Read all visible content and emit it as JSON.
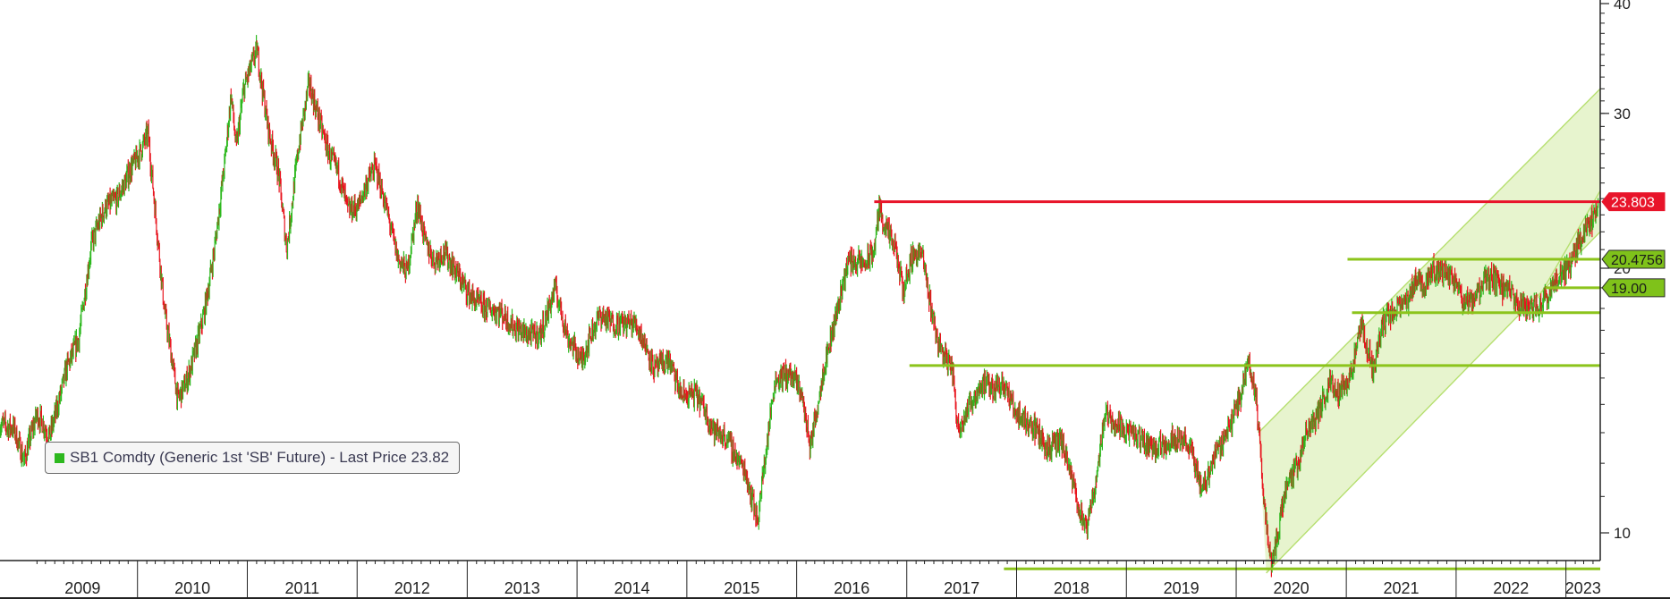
{
  "chart_data": {
    "type": "line",
    "title": "",
    "xlabel": "",
    "ylabel": "",
    "x_axis": {
      "type": "date",
      "range": [
        "2008-10-01",
        "2023-04-25"
      ],
      "tick_labels": [
        "2009",
        "2010",
        "2011",
        "2012",
        "2013",
        "2014",
        "2015",
        "2016",
        "2017",
        "2018",
        "2019",
        "2020",
        "2021",
        "2022",
        "2023"
      ]
    },
    "y_axis": {
      "scale": "log",
      "position": "right",
      "visible_range": [
        9.3,
        40
      ],
      "tick_labels": [
        10,
        20,
        30,
        40
      ]
    },
    "grid": false,
    "legend": {
      "placement": "bottom-left",
      "label": "SB1 Comdty (Generic 1st 'SB' Future) - Last Price 23.82",
      "swatch_color": "#2db81e"
    },
    "candle_colors": {
      "up": "#2db81e",
      "down": "#e8141e"
    },
    "series": [
      {
        "name": "SB1 Comdty (Generic 1st 'SB' Future) - Last Price",
        "points": [
          [
            "2008-10-01",
            13.6
          ],
          [
            "2008-11-15",
            13.2
          ],
          [
            "2008-12-20",
            11.9
          ],
          [
            "2009-02-01",
            13.4
          ],
          [
            "2009-03-15",
            12.9
          ],
          [
            "2009-05-10",
            15.7
          ],
          [
            "2009-06-20",
            16.8
          ],
          [
            "2009-08-01",
            21.0
          ],
          [
            "2009-09-15",
            23.0
          ],
          [
            "2009-10-25",
            24.0
          ],
          [
            "2009-12-10",
            26.5
          ],
          [
            "2010-01-15",
            27.8
          ],
          [
            "2010-02-05",
            28.6
          ],
          [
            "2010-03-05",
            22.2
          ],
          [
            "2010-04-01",
            17.5
          ],
          [
            "2010-05-15",
            14.0
          ],
          [
            "2010-06-15",
            15.0
          ],
          [
            "2010-07-05",
            16.0
          ],
          [
            "2010-08-10",
            18.1
          ],
          [
            "2010-09-15",
            21.3
          ],
          [
            "2010-10-20",
            26.5
          ],
          [
            "2010-11-08",
            31.0
          ],
          [
            "2010-11-25",
            26.8
          ],
          [
            "2010-12-20",
            31.5
          ],
          [
            "2011-02-02",
            35.8
          ],
          [
            "2011-03-10",
            29.6
          ],
          [
            "2011-04-15",
            26.0
          ],
          [
            "2011-05-12",
            21.0
          ],
          [
            "2011-06-20",
            26.9
          ],
          [
            "2011-07-25",
            31.9
          ],
          [
            "2011-08-25",
            29.6
          ],
          [
            "2011-10-01",
            27.3
          ],
          [
            "2011-11-01",
            26.2
          ],
          [
            "2011-12-01",
            23.5
          ],
          [
            "2012-01-05",
            23.3
          ],
          [
            "2012-02-01",
            24.5
          ],
          [
            "2012-03-01",
            25.6
          ],
          [
            "2012-04-01",
            23.7
          ],
          [
            "2012-05-15",
            20.9
          ],
          [
            "2012-06-15",
            20.2
          ],
          [
            "2012-07-20",
            23.9
          ],
          [
            "2012-08-15",
            21.2
          ],
          [
            "2012-09-15",
            20.0
          ],
          [
            "2012-10-15",
            20.5
          ],
          [
            "2012-12-15",
            19.5
          ],
          [
            "2013-02-15",
            18.4
          ],
          [
            "2013-04-15",
            17.6
          ],
          [
            "2013-06-01",
            16.9
          ],
          [
            "2013-07-15",
            16.9
          ],
          [
            "2013-09-01",
            17.2
          ],
          [
            "2013-10-20",
            19.1
          ],
          [
            "2013-12-01",
            16.4
          ],
          [
            "2014-01-15",
            15.4
          ],
          [
            "2014-02-20",
            17.0
          ],
          [
            "2014-03-20",
            18.0
          ],
          [
            "2014-05-20",
            17.5
          ],
          [
            "2014-07-15",
            17.0
          ],
          [
            "2014-09-15",
            15.2
          ],
          [
            "2014-11-01",
            16.0
          ],
          [
            "2014-12-15",
            14.6
          ],
          [
            "2015-02-01",
            14.3
          ],
          [
            "2015-04-01",
            12.8
          ],
          [
            "2015-05-15",
            12.8
          ],
          [
            "2015-07-15",
            12.0
          ],
          [
            "2015-08-24",
            10.4
          ],
          [
            "2015-09-20",
            12.2
          ],
          [
            "2015-10-20",
            14.6
          ],
          [
            "2015-12-10",
            15.0
          ],
          [
            "2016-01-15",
            14.7
          ],
          [
            "2016-02-15",
            12.8
          ],
          [
            "2016-03-30",
            15.5
          ],
          [
            "2016-05-10",
            17.4
          ],
          [
            "2016-06-20",
            20.0
          ],
          [
            "2016-07-20",
            20.1
          ],
          [
            "2016-08-15",
            20.3
          ],
          [
            "2016-09-15",
            21.4
          ],
          [
            "2016-10-01",
            23.9
          ],
          [
            "2016-10-25",
            22.5
          ],
          [
            "2016-11-25",
            21.0
          ],
          [
            "2016-12-20",
            18.6
          ],
          [
            "2017-01-20",
            20.3
          ],
          [
            "2017-02-20",
            20.5
          ],
          [
            "2017-03-15",
            18.6
          ],
          [
            "2017-04-15",
            16.7
          ],
          [
            "2017-06-01",
            15.7
          ],
          [
            "2017-06-20",
            13.3
          ],
          [
            "2017-08-10",
            14.0
          ],
          [
            "2017-09-10",
            14.5
          ],
          [
            "2017-10-10",
            14.4
          ],
          [
            "2017-11-15",
            15.0
          ],
          [
            "2017-12-20",
            14.2
          ],
          [
            "2018-01-20",
            13.7
          ],
          [
            "2018-02-20",
            13.3
          ],
          [
            "2018-04-15",
            12.2
          ],
          [
            "2018-05-30",
            12.6
          ],
          [
            "2018-07-15",
            11.3
          ],
          [
            "2018-08-20",
            10.2
          ],
          [
            "2018-09-30",
            12.0
          ],
          [
            "2018-10-20",
            13.6
          ],
          [
            "2018-12-01",
            13.0
          ],
          [
            "2019-01-15",
            12.9
          ],
          [
            "2019-02-28",
            12.9
          ],
          [
            "2019-04-20",
            12.7
          ],
          [
            "2019-06-15",
            12.7
          ],
          [
            "2019-07-30",
            12.3
          ],
          [
            "2019-09-10",
            11.2
          ],
          [
            "2019-10-25",
            12.6
          ],
          [
            "2019-12-10",
            13.4
          ],
          [
            "2020-01-15",
            14.2
          ],
          [
            "2020-02-12",
            15.5
          ],
          [
            "2020-03-10",
            13.7
          ],
          [
            "2020-04-01",
            10.8
          ],
          [
            "2020-04-28",
            9.2
          ],
          [
            "2020-05-25",
            10.5
          ],
          [
            "2020-06-20",
            11.8
          ],
          [
            "2020-07-20",
            12.0
          ],
          [
            "2020-08-20",
            12.9
          ],
          [
            "2020-10-01",
            13.4
          ],
          [
            "2020-11-10",
            14.7
          ],
          [
            "2020-12-10",
            14.5
          ],
          [
            "2021-01-20",
            15.6
          ],
          [
            "2021-02-20",
            17.5
          ],
          [
            "2021-04-01",
            15.2
          ],
          [
            "2021-05-01",
            17.0
          ],
          [
            "2021-06-01",
            17.5
          ],
          [
            "2021-07-01",
            17.9
          ],
          [
            "2021-07-25",
            18.4
          ],
          [
            "2021-08-20",
            20.0
          ],
          [
            "2021-09-15",
            19.5
          ],
          [
            "2021-10-15",
            20.3
          ],
          [
            "2021-11-15",
            19.6
          ],
          [
            "2021-12-15",
            19.3
          ],
          [
            "2022-01-20",
            18.2
          ],
          [
            "2022-02-20",
            18.1
          ],
          [
            "2022-04-01",
            19.6
          ],
          [
            "2022-05-01",
            19.9
          ],
          [
            "2022-06-01",
            19.2
          ],
          [
            "2022-07-01",
            18.6
          ],
          [
            "2022-08-01",
            17.8
          ],
          [
            "2022-09-05",
            17.7
          ],
          [
            "2022-09-25",
            17.9
          ],
          [
            "2022-10-25",
            18.7
          ],
          [
            "2022-11-20",
            19.5
          ],
          [
            "2022-12-20",
            20.1
          ],
          [
            "2023-01-20",
            20.4
          ],
          [
            "2023-02-15",
            21.3
          ],
          [
            "2023-03-15",
            22.0
          ],
          [
            "2023-04-05",
            22.4
          ],
          [
            "2023-04-18",
            23.82
          ]
        ]
      }
    ],
    "horizontal_lines": [
      {
        "value": 23.803,
        "color": "#e8142a",
        "from": "2016-09-15",
        "to": "2023-04-25",
        "label": "23.803"
      },
      {
        "value": 20.4756,
        "color": "#8cc41c",
        "from": "2021-01-05",
        "to": "2023-04-25",
        "label": "20.4756"
      },
      {
        "value": 19.0,
        "color": "#8cc41c",
        "from": "2022-10-25",
        "to": "2023-04-25",
        "label": "19.00"
      },
      {
        "value": 17.8,
        "color": "#8cc41c",
        "from": "2021-01-20",
        "to": "2023-04-25"
      },
      {
        "value": 15.5,
        "color": "#8cc41c",
        "from": "2017-01-10",
        "to": "2023-04-25"
      },
      {
        "value": 9.1,
        "color": "#8cc41c",
        "from": "2017-11-20",
        "to": "2023-04-25"
      }
    ],
    "channel": {
      "fill": "#dff0bd",
      "line_color": "#b6df70",
      "upper": [
        [
          "2020-03-15",
          13.0
        ],
        [
          "2023-04-25",
          32.0
        ]
      ],
      "lower": [
        [
          "2020-04-10",
          9.0
        ],
        [
          "2023-04-25",
          22.0
        ]
      ],
      "inner": [
        [
          "2022-10-01",
          18.5
        ],
        [
          "2023-04-25",
          24.5
        ]
      ]
    }
  }
}
